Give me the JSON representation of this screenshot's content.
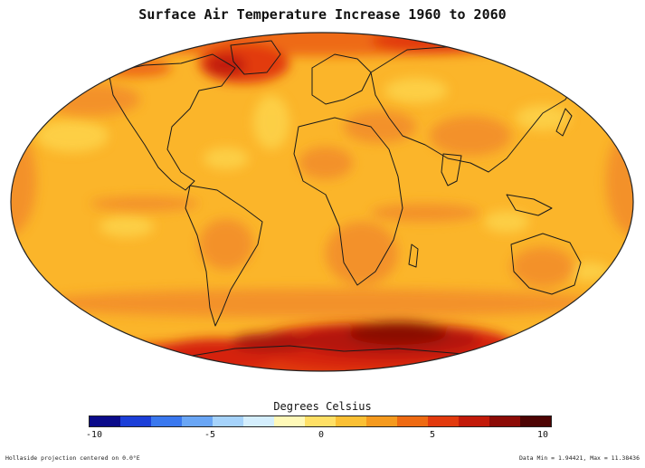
{
  "title": "Surface Air Temperature Increase 1960 to 2060",
  "legend": {
    "title": "Degrees Celsius",
    "ticks": [
      "-10",
      "-5",
      "0",
      "5",
      "10"
    ],
    "colors": [
      "#0b0b8a",
      "#1c3fd8",
      "#3a78ee",
      "#6aa6f5",
      "#a6d3fb",
      "#d4eefd",
      "#fff9b8",
      "#ffe066",
      "#fbc034",
      "#f59a1e",
      "#ee6a12",
      "#e23a0e",
      "#c21a0a",
      "#8c0b06",
      "#4d0403"
    ]
  },
  "colors": {
    "base": "#fbb52a",
    "pale": "#fdd24a",
    "warm": "#f3902a",
    "hot": "#e8581a",
    "red": "#d5230f",
    "dark": "#8a0a05",
    "coast": "#1a1a1a"
  },
  "footnotes": {
    "left": "Hollaside projection centered on 0.0°E",
    "right": "Data Min = 1.94421, Max = 11.38436"
  }
}
